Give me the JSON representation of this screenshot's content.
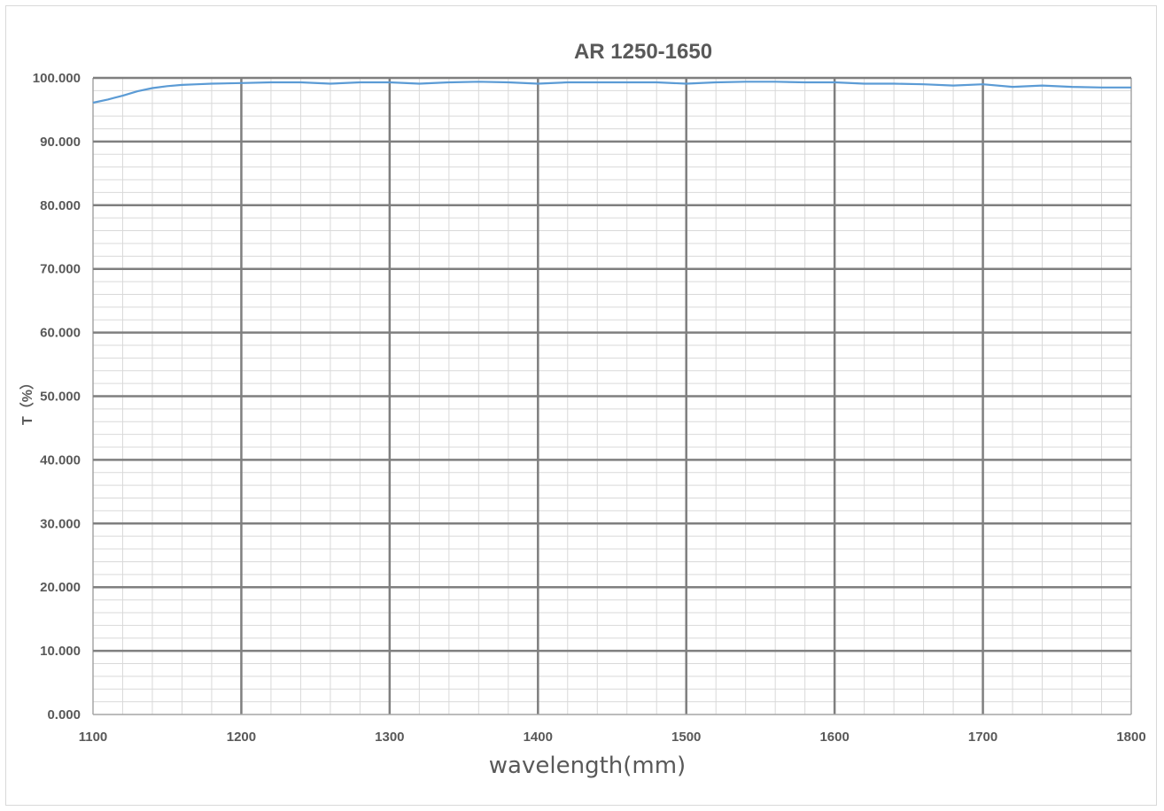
{
  "chart_data": {
    "type": "line",
    "title": "AR 1250-1650",
    "xlabel": "wavelength(mm)",
    "ylabel": "T（%）",
    "xlim": [
      1100,
      1800
    ],
    "ylim": [
      0,
      100
    ],
    "x_major_ticks": [
      1100,
      1200,
      1300,
      1400,
      1500,
      1600,
      1700,
      1800
    ],
    "x_minor_step": 20,
    "y_major_ticks": [
      0,
      10,
      20,
      30,
      40,
      50,
      60,
      70,
      80,
      90,
      100
    ],
    "y_minor_step": 2,
    "y_tick_format_decimals": 3,
    "grid": true,
    "series": [
      {
        "color": "#5b9bd5",
        "x": [
          1100,
          1110,
          1120,
          1130,
          1140,
          1150,
          1160,
          1170,
          1180,
          1200,
          1220,
          1240,
          1260,
          1280,
          1300,
          1320,
          1340,
          1360,
          1380,
          1400,
          1420,
          1440,
          1460,
          1480,
          1500,
          1520,
          1540,
          1560,
          1580,
          1600,
          1620,
          1640,
          1660,
          1680,
          1700,
          1720,
          1740,
          1760,
          1780,
          1800
        ],
        "y": [
          96.1,
          96.6,
          97.2,
          97.9,
          98.4,
          98.7,
          98.9,
          99.0,
          99.1,
          99.2,
          99.3,
          99.3,
          99.1,
          99.3,
          99.3,
          99.1,
          99.3,
          99.4,
          99.3,
          99.1,
          99.3,
          99.3,
          99.3,
          99.3,
          99.1,
          99.3,
          99.4,
          99.4,
          99.3,
          99.3,
          99.1,
          99.1,
          99.0,
          98.8,
          99.0,
          98.6,
          98.8,
          98.6,
          98.5,
          98.5
        ]
      }
    ]
  }
}
